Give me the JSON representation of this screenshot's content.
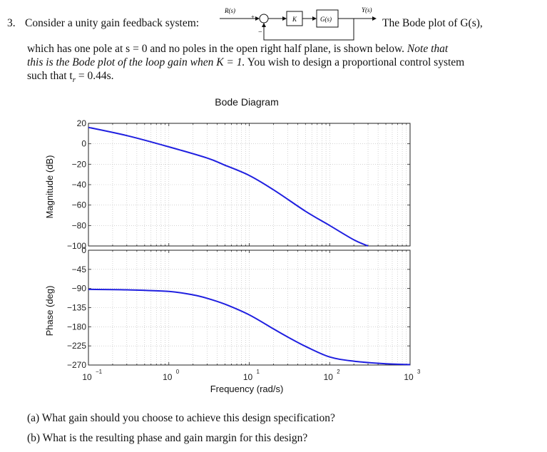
{
  "problem": {
    "number": "3.",
    "intro": "Consider a unity gain feedback system:",
    "intro_tail": "The Bode plot of G(s),",
    "line2": "which has one pole at s = 0 and no poles in the open right half plane, is shown below.",
    "line2_note": "Note that",
    "line3": "this is the Bode plot of the loop gain when K = 1.",
    "line3_tail": "You wish to design a proportional control system",
    "line4": "such that t",
    "line4_sub": "r",
    "line4_tail": " = 0.44s."
  },
  "block_diagram": {
    "input_label": "R(s)",
    "sum_sign": "+",
    "sum_minus": "−",
    "gain_label": "K",
    "plant_label": "G(s)",
    "output_label": "Y(s)"
  },
  "bode": {
    "title": "Bode Diagram",
    "xlabel": "Frequency (rad/s)",
    "mag_ylabel": "Magnitude (dB)",
    "phase_ylabel": "Phase (deg)",
    "mag_ticks": [
      "20",
      "0",
      "−20",
      "−40",
      "−60",
      "−80",
      "−100"
    ],
    "phase_ticks": [
      "0",
      "−45",
      "−90",
      "−135",
      "−180",
      "−225",
      "−270"
    ],
    "x_tick_base": "10",
    "x_tick_exps": [
      "−1",
      "0",
      "1",
      "2",
      "3"
    ],
    "line_color": "#1f1fe0"
  },
  "chart_data": [
    {
      "type": "line",
      "title": "Bode Diagram",
      "xlabel": "Frequency (rad/s)",
      "ylabel": "Magnitude (dB)",
      "xscale": "log",
      "xlim": [
        0.1,
        1000
      ],
      "ylim": [
        -100,
        20
      ],
      "yticks": [
        20,
        0,
        -20,
        -40,
        -60,
        -80,
        -100
      ],
      "grid": true,
      "series": [
        {
          "x": [
            0.1,
            0.3,
            1,
            3,
            5,
            10,
            20,
            50,
            100,
            200,
            300
          ],
          "y": [
            16,
            8,
            -3,
            -14,
            -21,
            -31,
            -45,
            -66,
            -80,
            -94,
            -100
          ]
        }
      ]
    },
    {
      "type": "line",
      "xlabel": "Frequency (rad/s)",
      "ylabel": "Phase (deg)",
      "xscale": "log",
      "xlim": [
        0.1,
        1000
      ],
      "ylim": [
        -270,
        0
      ],
      "yticks": [
        0,
        -45,
        -90,
        -135,
        -180,
        -225,
        -270
      ],
      "grid": true,
      "series": [
        {
          "x": [
            0.1,
            0.3,
            1,
            2,
            3,
            5,
            10,
            20,
            30,
            50,
            100,
            200,
            500,
            1000
          ],
          "y": [
            -92,
            -93,
            -97,
            -105,
            -113,
            -127,
            -152,
            -185,
            -204,
            -226,
            -251,
            -261,
            -267,
            -269
          ]
        }
      ]
    }
  ]
}
